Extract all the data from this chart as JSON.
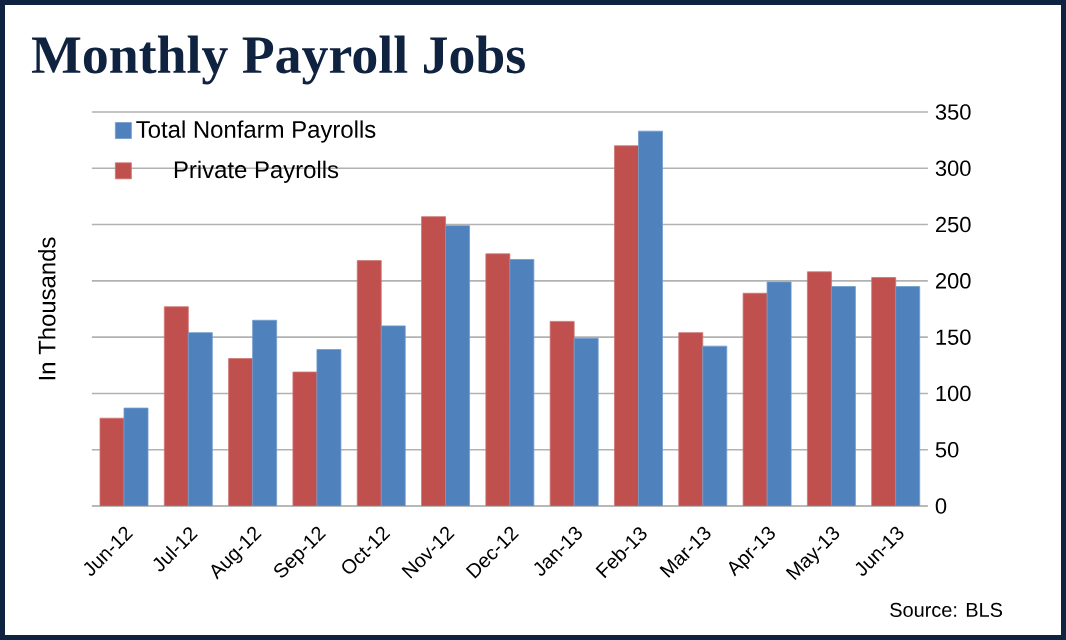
{
  "chart_data": {
    "type": "bar",
    "title": "Monthly Payroll Jobs",
    "ylabel": "In Thousands",
    "categories": [
      "Jun-12",
      "Jul-12",
      "Aug-12",
      "Sep-12",
      "Oct-12",
      "Nov-12",
      "Dec-12",
      "Jan-13",
      "Feb-13",
      "Mar-13",
      "Apr-13",
      "May-13",
      "Jun-13"
    ],
    "series": [
      {
        "name": "Private Payrolls",
        "color": "#c0504d",
        "values": [
          78,
          177,
          131,
          119,
          218,
          257,
          224,
          164,
          320,
          154,
          189,
          208,
          203
        ]
      },
      {
        "name": "Total Nonfarm Payrolls",
        "color": "#4f81bd",
        "values": [
          87,
          154,
          165,
          139,
          160,
          249,
          219,
          149,
          333,
          142,
          199,
          195,
          195
        ]
      }
    ],
    "ylim": [
      0,
      350
    ],
    "yticks": [
      0,
      50,
      100,
      150,
      200,
      250,
      300,
      350
    ],
    "grid": "y",
    "legend": "top left",
    "annotations": [
      "Source:  BLS"
    ]
  }
}
